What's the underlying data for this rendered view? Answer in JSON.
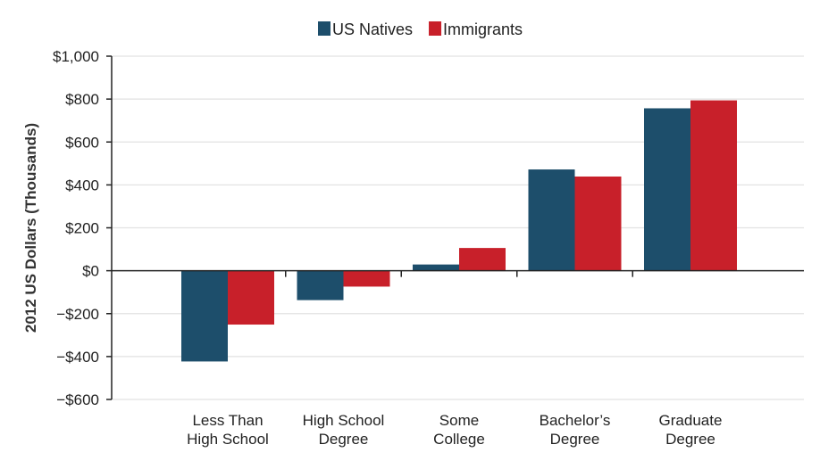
{
  "chart_data": {
    "type": "bar",
    "title": "",
    "xlabel": "",
    "ylabel": "2012 US Dollars (Thousands)",
    "ylim": [
      -600,
      1000
    ],
    "yticks": [
      1000,
      800,
      600,
      400,
      200,
      0,
      -200,
      -400,
      -600
    ],
    "ytick_labels": [
      "$1,000",
      "$800",
      "$600",
      "$400",
      "$200",
      "$0",
      "−$200",
      "−$400",
      "−$600"
    ],
    "categories": [
      [
        "Less Than",
        "High School"
      ],
      [
        "High School",
        "Degree"
      ],
      [
        "Some",
        "College"
      ],
      [
        "Bachelor’s",
        "Degree"
      ],
      [
        "Graduate",
        "Degree"
      ]
    ],
    "series": [
      {
        "name": "US Natives",
        "color": "#1d4e6b",
        "values": [
          -423,
          -137,
          29,
          472,
          757
        ]
      },
      {
        "name": "Immigrants",
        "color": "#c8202a",
        "values": [
          -251,
          -74,
          106,
          439,
          794
        ]
      }
    ],
    "grid": true,
    "legend": "top-center"
  }
}
